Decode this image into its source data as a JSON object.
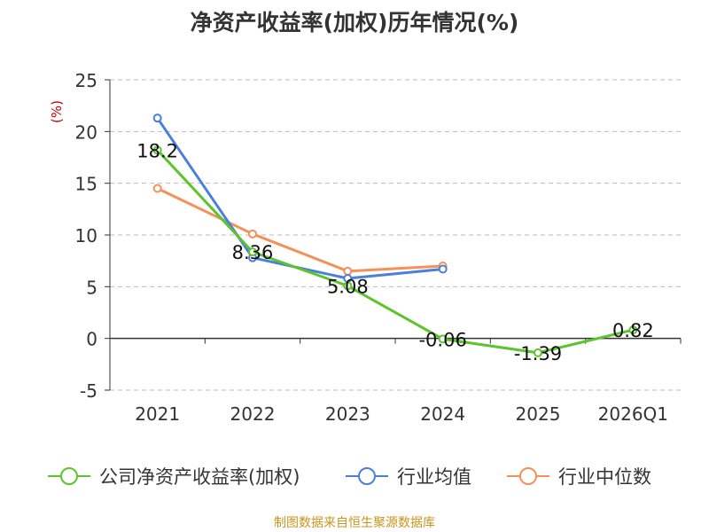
{
  "chart_data": {
    "type": "line",
    "title": "净资产收益率(加权)历年情况(%)",
    "ylabel": "(%)",
    "xlabel": "",
    "categories": [
      "2021",
      "2022",
      "2023",
      "2024",
      "2025",
      "2026Q1"
    ],
    "ylim": [
      -5,
      25
    ],
    "yticks": [
      -5,
      0,
      5,
      10,
      15,
      20,
      25
    ],
    "grid": "horizontal dashed",
    "legend_position": "bottom",
    "series": [
      {
        "name": "公司净资产收益率(加权)",
        "color": "#5cc42d",
        "values": [
          18.2,
          8.36,
          5.08,
          -0.06,
          -1.39,
          0.82
        ],
        "labels": [
          "18.2",
          "8.36",
          "5.08",
          "-0.06",
          "-1.39",
          "0.82"
        ]
      },
      {
        "name": "行业均值",
        "color": "#4a7fdb",
        "values": [
          21.3,
          7.8,
          5.8,
          6.7,
          null,
          null
        ]
      },
      {
        "name": "行业中位数",
        "color": "#f5905b",
        "values": [
          14.5,
          10.1,
          6.5,
          7.0,
          null,
          null
        ]
      }
    ]
  },
  "source": {
    "text": "制图数据来自恒生聚源数据库",
    "color": "#c8961e"
  },
  "colors": {
    "axis": "#333333",
    "grid": "#bbbbbb",
    "ylabel": "#cc0000"
  }
}
